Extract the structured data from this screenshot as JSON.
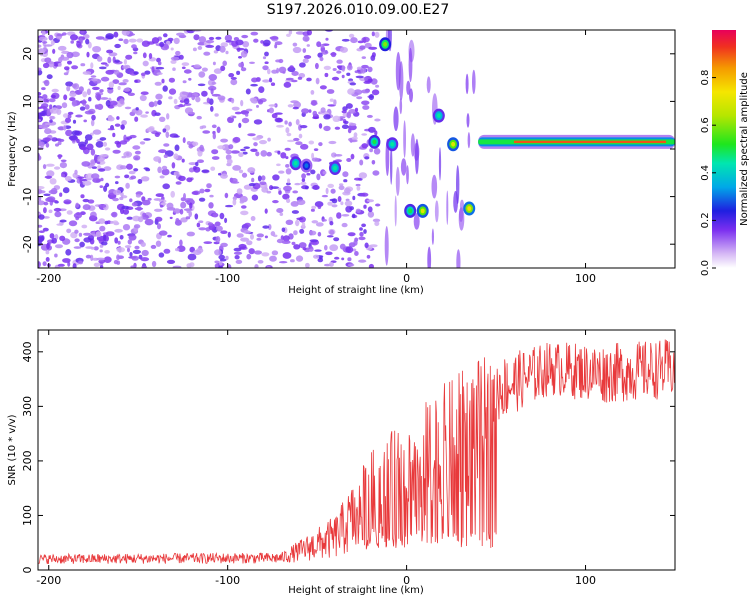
{
  "title": "S197.2026.010.09.00.E27",
  "chart_data": [
    {
      "type": "heatmap",
      "name": "spectrogram",
      "xlabel": "Height of straight line (km)",
      "ylabel": "Frequency (Hz)",
      "xlim": [
        -206,
        150
      ],
      "ylim": [
        -25,
        25
      ],
      "xticks": [
        -200,
        -100,
        0,
        100
      ],
      "yticks": [
        -20,
        -10,
        0,
        10,
        20
      ],
      "colorbar": {
        "label": "Normalized spectral amplitude",
        "range": [
          0,
          1
        ],
        "ticks": [
          0.0,
          0.2,
          0.4,
          0.6,
          0.8
        ]
      },
      "ridge": {
        "x_start": 40,
        "x_end": 150,
        "freq": 1.5
      },
      "blobs": [
        {
          "x": -12,
          "f": 22,
          "a": 0.6
        },
        {
          "x": -18,
          "f": 1.5,
          "a": 0.5
        },
        {
          "x": -8,
          "f": 1,
          "a": 0.45
        },
        {
          "x": 2,
          "f": -13,
          "a": 0.5
        },
        {
          "x": 9,
          "f": -13,
          "a": 0.7
        },
        {
          "x": 18,
          "f": 7,
          "a": 0.45
        },
        {
          "x": 26,
          "f": 1,
          "a": 0.7
        },
        {
          "x": 35,
          "f": -12.5,
          "a": 0.75
        },
        {
          "x": -62,
          "f": -3,
          "a": 0.45
        },
        {
          "x": -40,
          "f": -4,
          "a": 0.45
        },
        {
          "x": -56,
          "f": -3.5,
          "a": 0.3
        }
      ]
    },
    {
      "type": "line",
      "name": "snr",
      "xlabel": "Height of straight line (km)",
      "ylabel": "SNR (10 * v/v)",
      "xlim": [
        -206,
        150
      ],
      "ylim": [
        0,
        440
      ],
      "xticks": [
        -200,
        -100,
        0,
        100
      ],
      "yticks": [
        0,
        100,
        200,
        300,
        400
      ],
      "color": "#e8393b",
      "profile": [
        {
          "x": -206,
          "mean": 20,
          "noise": 9
        },
        {
          "x": -70,
          "mean": 22,
          "noise": 10
        },
        {
          "x": -40,
          "mean": 60,
          "noise": 40
        },
        {
          "x": -20,
          "mean": 130,
          "noise": 90
        },
        {
          "x": 0,
          "mean": 160,
          "noise": 120
        },
        {
          "x": 20,
          "mean": 200,
          "noise": 140
        },
        {
          "x": 40,
          "mean": 260,
          "noise": 130
        },
        {
          "x": 50,
          "mean": 330,
          "noise": 60
        },
        {
          "x": 80,
          "mean": 370,
          "noise": 50
        },
        {
          "x": 110,
          "mean": 360,
          "noise": 55
        },
        {
          "x": 150,
          "mean": 370,
          "noise": 55
        }
      ]
    }
  ]
}
